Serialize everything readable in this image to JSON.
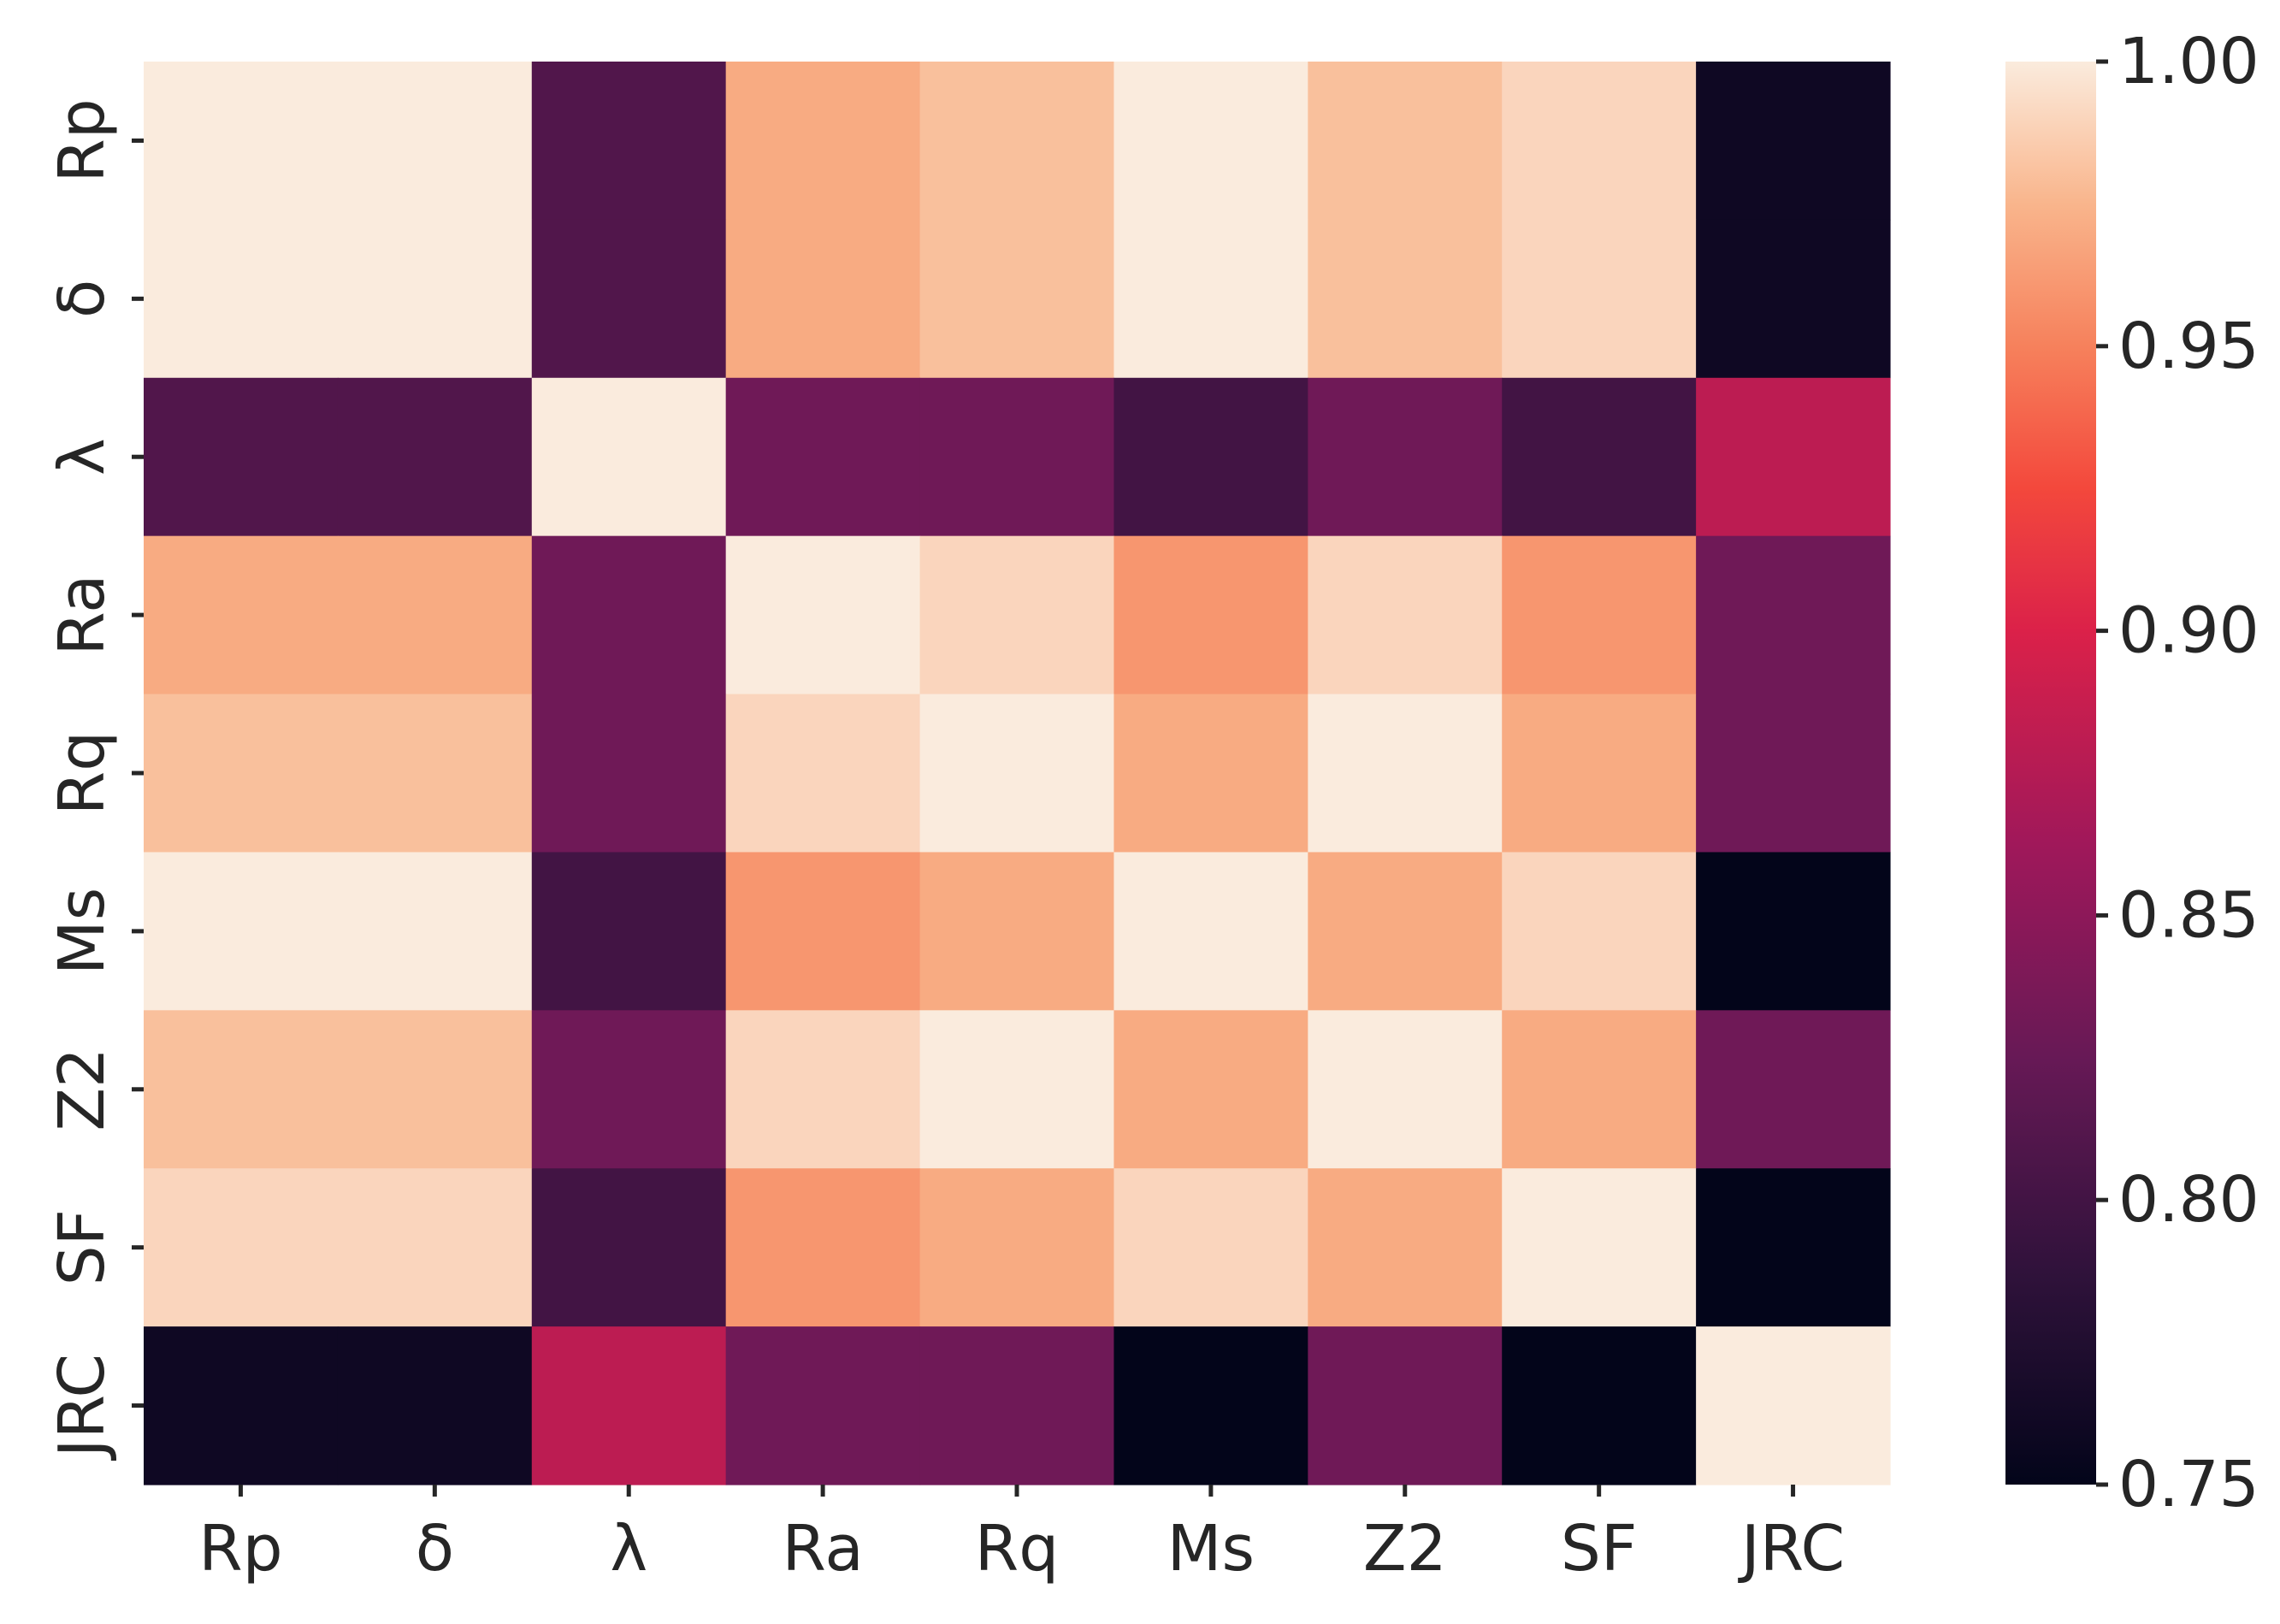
{
  "chart_data": {
    "type": "heatmap",
    "title": "",
    "xlabel": "",
    "ylabel": "",
    "x_labels": [
      "Rp",
      "δ",
      "λ",
      "Ra",
      "Rq",
      "Ms",
      "Z2",
      "SF",
      "JRC"
    ],
    "y_labels": [
      "Rp",
      "δ",
      "λ",
      "Ra",
      "Rq",
      "Ms",
      "Z2",
      "SF",
      "JRC"
    ],
    "values": [
      [
        1.0,
        1.0,
        0.81,
        0.97,
        0.98,
        1.0,
        0.98,
        0.99,
        0.76
      ],
      [
        1.0,
        1.0,
        0.81,
        0.97,
        0.98,
        1.0,
        0.98,
        0.99,
        0.76
      ],
      [
        0.81,
        0.81,
        1.0,
        0.83,
        0.83,
        0.8,
        0.83,
        0.8,
        0.88
      ],
      [
        0.97,
        0.97,
        0.83,
        1.0,
        0.99,
        0.96,
        0.99,
        0.96,
        0.83
      ],
      [
        0.98,
        0.98,
        0.83,
        0.99,
        1.0,
        0.97,
        1.0,
        0.97,
        0.83
      ],
      [
        1.0,
        1.0,
        0.8,
        0.96,
        0.97,
        1.0,
        0.97,
        0.99,
        0.75
      ],
      [
        0.98,
        0.98,
        0.83,
        0.99,
        1.0,
        0.97,
        1.0,
        0.97,
        0.83
      ],
      [
        0.99,
        0.99,
        0.8,
        0.96,
        0.97,
        0.99,
        0.97,
        1.0,
        0.75
      ],
      [
        0.76,
        0.76,
        0.88,
        0.83,
        0.83,
        0.75,
        0.83,
        0.75,
        1.0
      ]
    ],
    "vmin": 0.75,
    "vmax": 1.0,
    "colormap": "rocket",
    "colorbar": {
      "ticks": [
        "0.75",
        "0.80",
        "0.85",
        "0.90",
        "0.95",
        "1.00"
      ],
      "tick_values": [
        0.75,
        0.8,
        0.85,
        0.9,
        0.95,
        1.0
      ]
    },
    "grid": false,
    "legend": "colorbar-right"
  }
}
